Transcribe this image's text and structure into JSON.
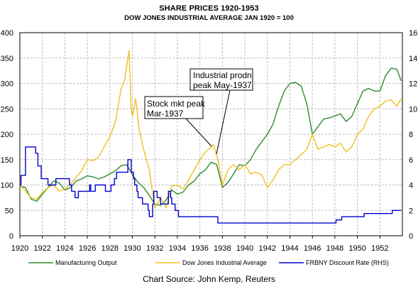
{
  "chart_data": {
    "type": "line",
    "title": "SHARE PRICES 1920-1953",
    "subtitle": "DOW JONES INDUSTRIAL AVERAGE JAN 1920 = 100",
    "x_ticks": [
      "1920",
      "1922",
      "1924",
      "1926",
      "1928",
      "1930",
      "1932",
      "1934",
      "1936",
      "1938",
      "1940",
      "1942",
      "1944",
      "1946",
      "1948",
      "1950",
      "1952"
    ],
    "xlim": [
      1920,
      1954
    ],
    "ylim_left": [
      0,
      400
    ],
    "ylim_right": [
      0,
      16
    ],
    "y_ticks_left": [
      "0",
      "50",
      "100",
      "150",
      "200",
      "250",
      "300",
      "350",
      "400"
    ],
    "y_ticks_right": [
      "0",
      "2",
      "4",
      "6",
      "8",
      "10",
      "12",
      "14",
      "16"
    ],
    "grid": true,
    "legend_position": "bottom",
    "series": [
      {
        "name": "Manufacturing Output",
        "axis": "left",
        "color": "#2e8b2e",
        "points": [
          [
            1920,
            98
          ],
          [
            1920.5,
            95
          ],
          [
            1921,
            72
          ],
          [
            1921.5,
            68
          ],
          [
            1922,
            82
          ],
          [
            1922.5,
            95
          ],
          [
            1923,
            108
          ],
          [
            1923.5,
            104
          ],
          [
            1924,
            90
          ],
          [
            1924.5,
            95
          ],
          [
            1925,
            108
          ],
          [
            1925.5,
            112
          ],
          [
            1926,
            118
          ],
          [
            1926.5,
            116
          ],
          [
            1927,
            112
          ],
          [
            1927.5,
            116
          ],
          [
            1928,
            122
          ],
          [
            1928.5,
            128
          ],
          [
            1929,
            138
          ],
          [
            1929.5,
            140
          ],
          [
            1930,
            120
          ],
          [
            1930.5,
            105
          ],
          [
            1931,
            95
          ],
          [
            1931.5,
            80
          ],
          [
            1932,
            62
          ],
          [
            1932.5,
            60
          ],
          [
            1933,
            70
          ],
          [
            1933.5,
            90
          ],
          [
            1934,
            82
          ],
          [
            1934.5,
            86
          ],
          [
            1935,
            100
          ],
          [
            1935.5,
            108
          ],
          [
            1936,
            122
          ],
          [
            1936.5,
            130
          ],
          [
            1937,
            145
          ],
          [
            1937.5,
            140
          ],
          [
            1938,
            95
          ],
          [
            1938.5,
            105
          ],
          [
            1939,
            122
          ],
          [
            1939.5,
            140
          ],
          [
            1940,
            138
          ],
          [
            1940.5,
            150
          ],
          [
            1941,
            170
          ],
          [
            1941.5,
            185
          ],
          [
            1942,
            200
          ],
          [
            1942.5,
            220
          ],
          [
            1943,
            255
          ],
          [
            1943.5,
            285
          ],
          [
            1944,
            300
          ],
          [
            1944.5,
            302
          ],
          [
            1945,
            295
          ],
          [
            1945.5,
            260
          ],
          [
            1946,
            200
          ],
          [
            1946.5,
            215
          ],
          [
            1947,
            230
          ],
          [
            1947.5,
            232
          ],
          [
            1948,
            236
          ],
          [
            1948.5,
            240
          ],
          [
            1949,
            225
          ],
          [
            1949.5,
            235
          ],
          [
            1950,
            260
          ],
          [
            1950.5,
            285
          ],
          [
            1951,
            290
          ],
          [
            1951.5,
            285
          ],
          [
            1952,
            285
          ],
          [
            1952.5,
            315
          ],
          [
            1953,
            330
          ],
          [
            1953.5,
            328
          ],
          [
            1953.9,
            305
          ]
        ]
      },
      {
        "name": "Dow Jones Industrial Average",
        "axis": "left",
        "color": "#f0c020",
        "points": [
          [
            1920,
            100
          ],
          [
            1920.5,
            88
          ],
          [
            1921,
            75
          ],
          [
            1921.5,
            72
          ],
          [
            1922,
            85
          ],
          [
            1922.5,
            95
          ],
          [
            1923,
            100
          ],
          [
            1923.5,
            88
          ],
          [
            1924,
            92
          ],
          [
            1924.5,
            102
          ],
          [
            1925,
            115
          ],
          [
            1925.5,
            128
          ],
          [
            1926,
            150
          ],
          [
            1926.5,
            148
          ],
          [
            1927,
            155
          ],
          [
            1927.5,
            175
          ],
          [
            1928,
            195
          ],
          [
            1928.5,
            225
          ],
          [
            1929,
            290
          ],
          [
            1929.3,
            305
          ],
          [
            1929.7,
            365
          ],
          [
            1929.9,
            250
          ],
          [
            1930,
            235
          ],
          [
            1930.3,
            270
          ],
          [
            1930.6,
            210
          ],
          [
            1931,
            170
          ],
          [
            1931.5,
            130
          ],
          [
            1932,
            55
          ],
          [
            1932.5,
            75
          ],
          [
            1933,
            55
          ],
          [
            1933.5,
            98
          ],
          [
            1934,
            100
          ],
          [
            1934.5,
            92
          ],
          [
            1935,
            110
          ],
          [
            1935.5,
            130
          ],
          [
            1936,
            150
          ],
          [
            1936.5,
            165
          ],
          [
            1937,
            175
          ],
          [
            1937.2,
            180
          ],
          [
            1937.6,
            150
          ],
          [
            1938,
            100
          ],
          [
            1938.5,
            130
          ],
          [
            1939,
            140
          ],
          [
            1939.5,
            130
          ],
          [
            1940,
            140
          ],
          [
            1940.5,
            122
          ],
          [
            1941,
            125
          ],
          [
            1941.5,
            120
          ],
          [
            1942,
            95
          ],
          [
            1942.5,
            110
          ],
          [
            1943,
            130
          ],
          [
            1943.5,
            140
          ],
          [
            1944,
            140
          ],
          [
            1944.5,
            150
          ],
          [
            1945,
            160
          ],
          [
            1945.5,
            170
          ],
          [
            1946,
            200
          ],
          [
            1946.5,
            170
          ],
          [
            1947,
            175
          ],
          [
            1947.5,
            180
          ],
          [
            1948,
            175
          ],
          [
            1948.5,
            182
          ],
          [
            1949,
            165
          ],
          [
            1949.5,
            175
          ],
          [
            1950,
            200
          ],
          [
            1950.5,
            210
          ],
          [
            1951,
            235
          ],
          [
            1951.5,
            250
          ],
          [
            1952,
            255
          ],
          [
            1952.5,
            265
          ],
          [
            1953,
            268
          ],
          [
            1953.5,
            255
          ],
          [
            1953.9,
            270
          ]
        ]
      },
      {
        "name": "FRBNY Discount Rate (RHS)",
        "axis": "right",
        "color": "#0000cc",
        "steps": [
          [
            1920,
            4
          ],
          [
            1920.1,
            4.75
          ],
          [
            1920.5,
            7
          ],
          [
            1921.4,
            6.5
          ],
          [
            1921.6,
            5.5
          ],
          [
            1921.9,
            4.5
          ],
          [
            1922.5,
            4
          ],
          [
            1923.2,
            4.5
          ],
          [
            1924.4,
            4
          ],
          [
            1924.6,
            3.5
          ],
          [
            1924.9,
            3
          ],
          [
            1925.2,
            3.5
          ],
          [
            1926.2,
            4
          ],
          [
            1926.3,
            3.5
          ],
          [
            1926.7,
            4
          ],
          [
            1927.6,
            3.5
          ],
          [
            1928.1,
            4
          ],
          [
            1928.4,
            4.5
          ],
          [
            1928.6,
            5
          ],
          [
            1929.6,
            6
          ],
          [
            1929.9,
            5
          ],
          [
            1930.1,
            4.5
          ],
          [
            1930.2,
            4
          ],
          [
            1930.4,
            3.5
          ],
          [
            1930.5,
            3
          ],
          [
            1930.9,
            2.5
          ],
          [
            1931.4,
            2
          ],
          [
            1931.5,
            1.5
          ],
          [
            1931.8,
            2.5
          ],
          [
            1931.9,
            3.5
          ],
          [
            1932.2,
            3
          ],
          [
            1932.5,
            2.5
          ],
          [
            1933.2,
            3.5
          ],
          [
            1933.4,
            3
          ],
          [
            1933.5,
            2.5
          ],
          [
            1933.8,
            2
          ],
          [
            1934.1,
            1.5
          ],
          [
            1937.6,
            1
          ],
          [
            1946.3,
            1
          ],
          [
            1948.1,
            1.25
          ],
          [
            1948.6,
            1.5
          ],
          [
            1950.6,
            1.75
          ],
          [
            1953.1,
            2
          ],
          [
            1953.9,
            2
          ]
        ]
      }
    ],
    "annotations": [
      {
        "text": [
          "Industrial prodn",
          "peak May-1937"
        ]
      },
      {
        "text": [
          "Stock mkt peak",
          "Mar-1937"
        ]
      }
    ]
  },
  "source": "Chart Source: John Kemp, Reuters"
}
